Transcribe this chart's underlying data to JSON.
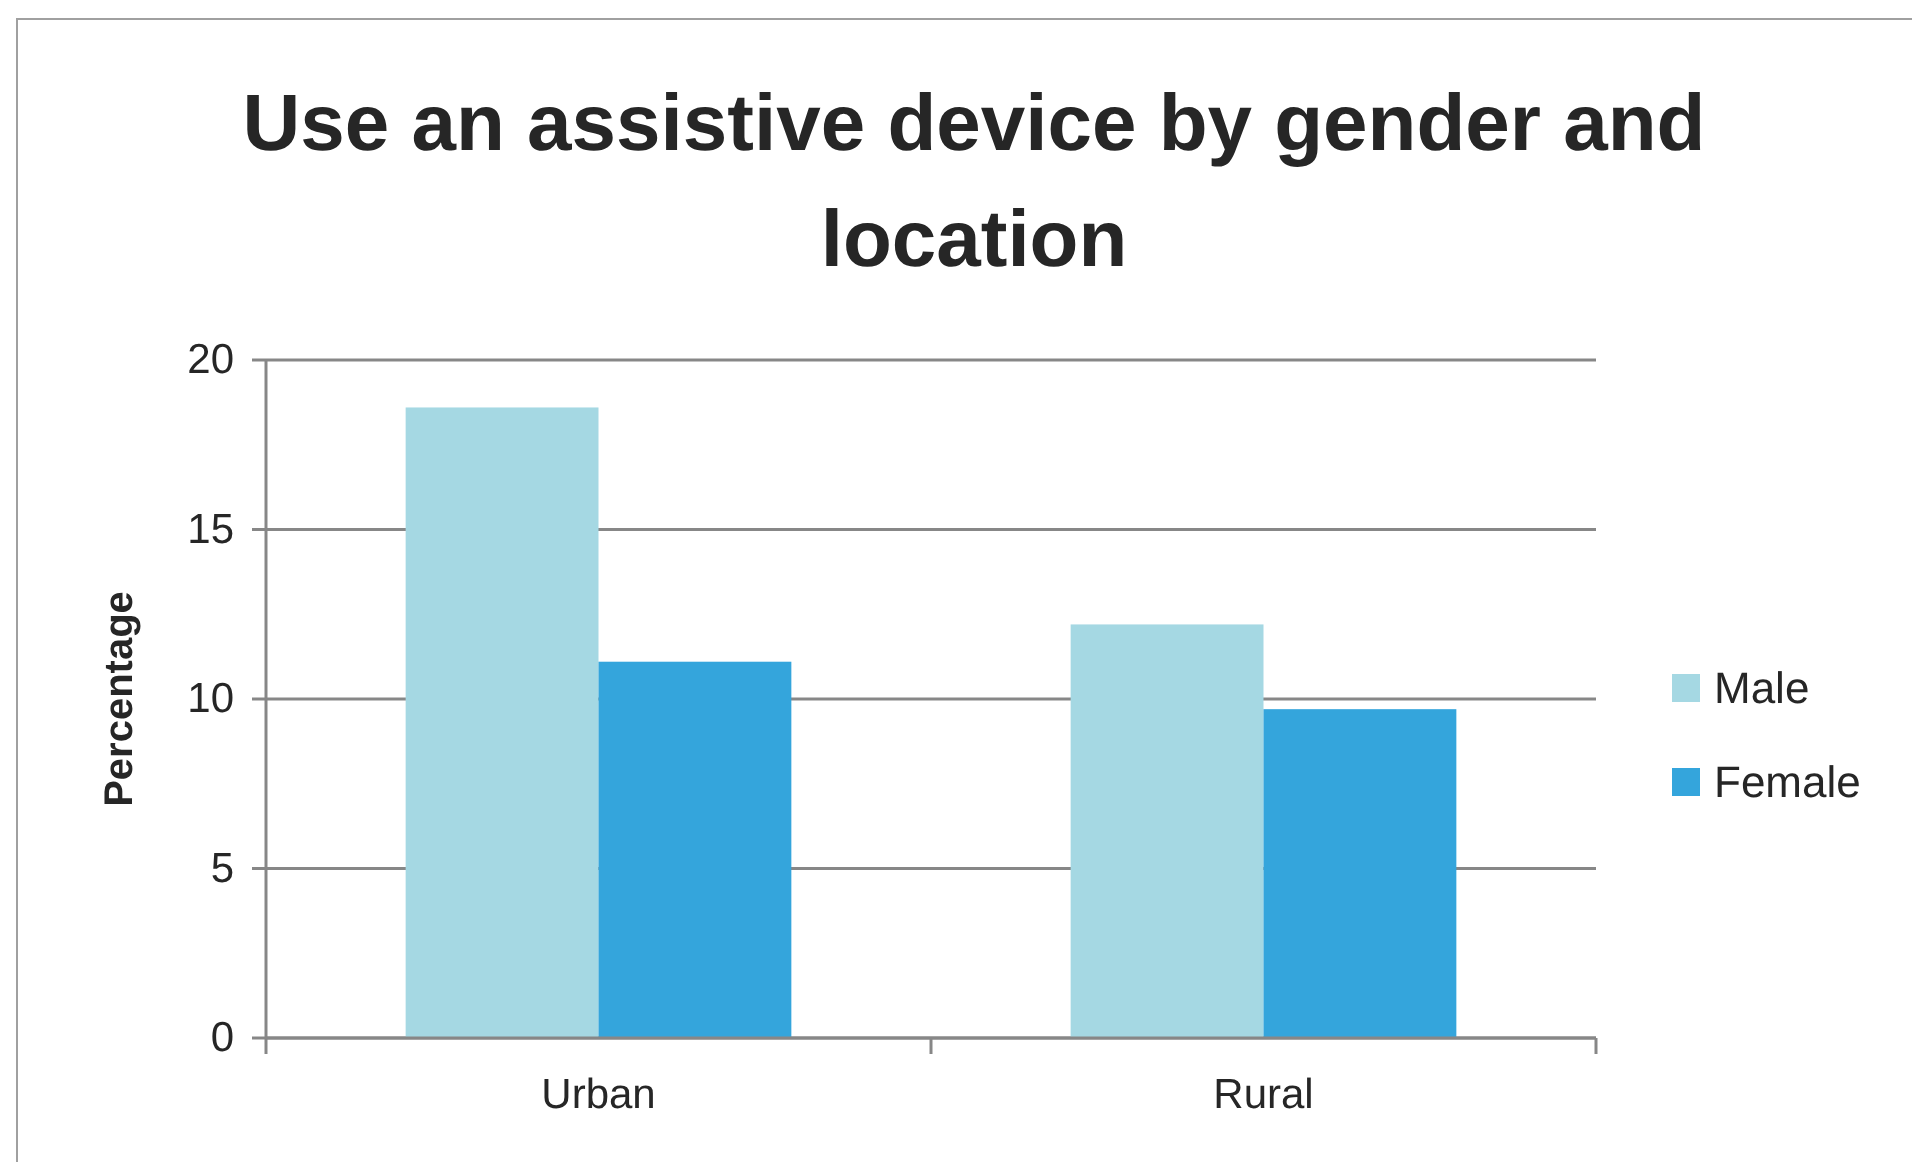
{
  "chart_data": {
    "type": "bar",
    "title": "Use an assistive device by gender and location",
    "ylabel": "Percentage",
    "categories": [
      "Urban",
      "Rural"
    ],
    "series": [
      {
        "name": "Male",
        "color": "#a5d8e3",
        "values": [
          18.6,
          12.2
        ]
      },
      {
        "name": "Female",
        "color": "#34a5dc",
        "values": [
          11.1,
          9.7
        ]
      }
    ],
    "ylim": [
      0,
      20
    ],
    "yticks": [
      0,
      5,
      10,
      15,
      20
    ],
    "grid": "y",
    "legend": "right"
  }
}
